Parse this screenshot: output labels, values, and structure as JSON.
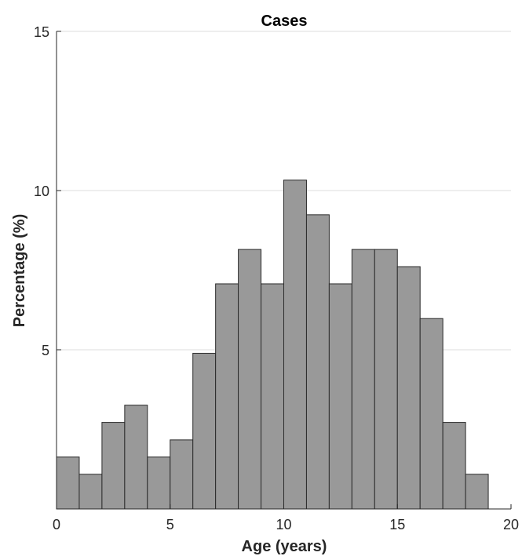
{
  "chart_data": {
    "type": "bar",
    "title": "Cases",
    "xlabel": "Age (years)",
    "ylabel": "Percentage (%)",
    "xlim": [
      0,
      20
    ],
    "ylim": [
      0,
      15
    ],
    "xticks": [
      0,
      5,
      10,
      15,
      20
    ],
    "yticks": [
      5,
      10,
      15
    ],
    "grid": true,
    "bar_color": "#999999",
    "bar_edge_color": "#2b2b2b",
    "bin_edges": [
      0,
      1,
      2,
      3,
      4,
      5,
      6,
      7,
      8,
      9,
      10,
      11,
      12,
      13,
      14,
      15,
      16,
      17,
      18,
      19
    ],
    "values": [
      1.63,
      1.09,
      2.72,
      3.26,
      1.63,
      2.17,
      4.89,
      7.07,
      8.15,
      7.07,
      10.33,
      9.24,
      7.07,
      8.15,
      8.15,
      7.61,
      5.98,
      2.72,
      1.09
    ]
  }
}
